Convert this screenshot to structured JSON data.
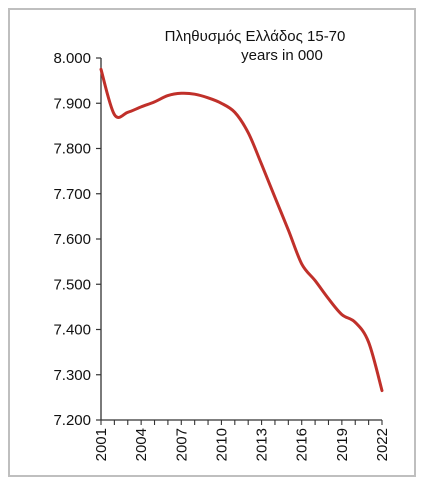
{
  "chart_data": {
    "type": "line",
    "title_lines": [
      "Πληθυσμός Ελλάδος 15-70",
      "years in 000"
    ],
    "xlabel": "",
    "ylabel": "",
    "xlim": [
      2001,
      2022
    ],
    "ylim": [
      7200,
      8000
    ],
    "y_ticks": [
      7200,
      7300,
      7400,
      7500,
      7600,
      7700,
      7800,
      7900,
      8000
    ],
    "y_tick_labels": [
      "7.200",
      "7.300",
      "7.400",
      "7.500",
      "7.600",
      "7.700",
      "7.800",
      "7.900",
      "8.000"
    ],
    "x_ticks": [
      2001,
      2004,
      2007,
      2010,
      2013,
      2016,
      2019,
      2022
    ],
    "x_tick_labels": [
      "2001",
      "2004",
      "2007",
      "2010",
      "2013",
      "2016",
      "2019",
      "2022"
    ],
    "grid": false,
    "legend": "none",
    "series": [
      {
        "color": "#c0302a",
        "x": [
          2001,
          2002,
          2003,
          2004,
          2005,
          2006,
          2007,
          2008,
          2009,
          2010,
          2011,
          2012,
          2013,
          2014,
          2015,
          2016,
          2017,
          2018,
          2019,
          2020,
          2021,
          2022
        ],
        "y": [
          7975,
          7875,
          7880,
          7892,
          7903,
          7917,
          7922,
          7920,
          7912,
          7900,
          7880,
          7835,
          7765,
          7692,
          7620,
          7545,
          7508,
          7468,
          7433,
          7416,
          7372,
          7265
        ]
      }
    ]
  }
}
